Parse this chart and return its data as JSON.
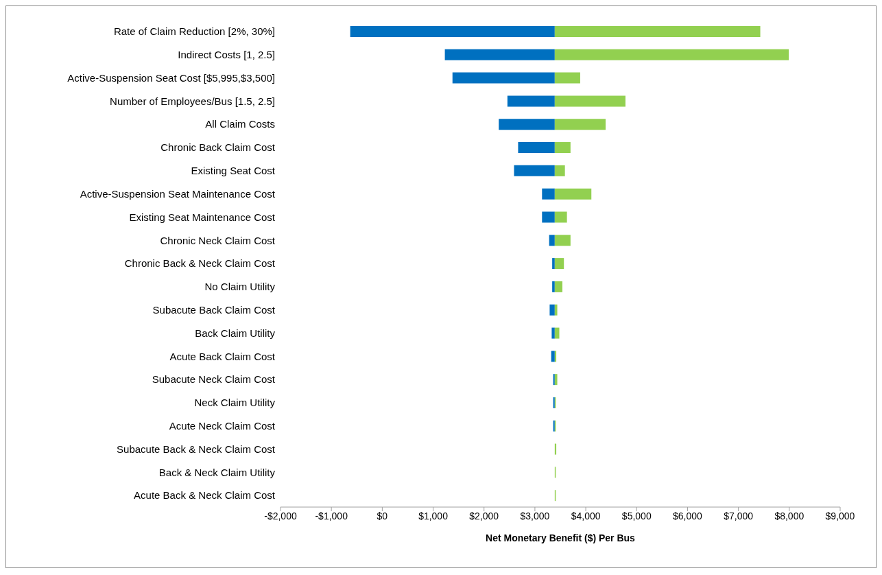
{
  "chart_data": {
    "type": "bar",
    "orientation": "horizontal",
    "xlabel": "Net Monetary Benefit ($) Per Bus",
    "categories": [
      "Rate of Claim Reduction [2%, 30%]",
      "Indirect Costs [1, 2.5]",
      "Active-Suspension Seat Cost [$5,995,$3,500]",
      "Number of Employees/Bus [1.5, 2.5]",
      "All Claim Costs",
      "Chronic Back Claim Cost",
      "Existing Seat Cost",
      "Active-Suspension Seat Maintenance Cost",
      "Existing Seat Maintenance Cost",
      "Chronic Neck Claim Cost",
      "Chronic Back & Neck Claim Cost",
      "No Claim Utility",
      "Subacute Back Claim Cost",
      "Back Claim Utility",
      "Acute Back Claim Cost",
      "Subacute Neck Claim Cost",
      "Neck Claim Utility",
      "Acute Neck Claim Cost",
      "Subacute Back & Neck Claim Cost",
      "Back & Neck Claim Utility",
      "Acute Back & Neck Claim Cost"
    ],
    "series": [
      {
        "color": "#0070c0",
        "base": [
          3390,
          3390,
          3390,
          3390,
          3390,
          3390,
          3390,
          3390,
          3390,
          3390,
          3390,
          3390,
          3390,
          3390,
          3390,
          3390,
          3390,
          3390,
          null,
          null,
          null
        ],
        "values": [
          -4020,
          -2160,
          -2010,
          -930,
          -1100,
          -720,
          -800,
          -250,
          -250,
          -110,
          -50,
          -50,
          -100,
          -60,
          -70,
          -30,
          -30,
          -30,
          null,
          null,
          null
        ]
      },
      {
        "color": "#92d050",
        "base": [
          3390,
          3390,
          3390,
          3390,
          3390,
          3390,
          3390,
          3390,
          3390,
          3390,
          3390,
          3390,
          3390,
          3390,
          3390,
          3390,
          3390,
          3390,
          3390,
          3390,
          3390
        ],
        "values": [
          4040,
          4600,
          500,
          1390,
          1000,
          310,
          200,
          720,
          240,
          310,
          180,
          150,
          50,
          90,
          30,
          50,
          20,
          20,
          30,
          20,
          20
        ]
      }
    ],
    "xlim": [
      -2000,
      9000
    ],
    "xticks": [
      {
        "value": -2000,
        "label": "-$2,000"
      },
      {
        "value": -1000,
        "label": "-$1,000"
      },
      {
        "value": 0,
        "label": "$0"
      },
      {
        "value": 1000,
        "label": "$1,000"
      },
      {
        "value": 2000,
        "label": "$2,000"
      },
      {
        "value": 3000,
        "label": "$3,000"
      },
      {
        "value": 4000,
        "label": "$4,000"
      },
      {
        "value": 5000,
        "label": "$5,000"
      },
      {
        "value": 6000,
        "label": "$6,000"
      },
      {
        "value": 7000,
        "label": "$7,000"
      },
      {
        "value": 8000,
        "label": "$8,000"
      },
      {
        "value": 9000,
        "label": "$9,000"
      }
    ],
    "grid": false,
    "legend": false
  }
}
